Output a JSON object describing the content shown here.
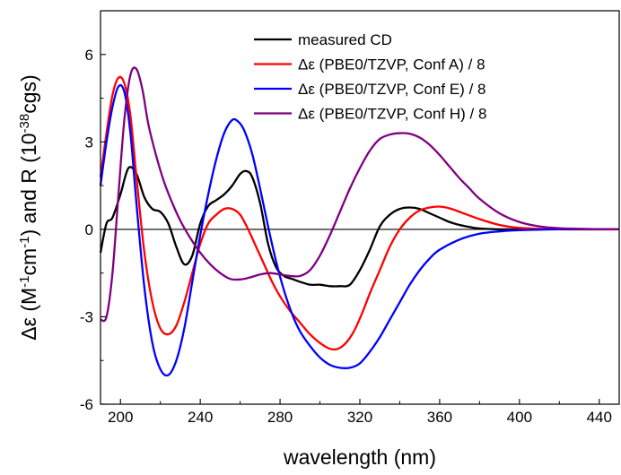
{
  "chart_data": {
    "type": "line",
    "xlabel": "wavelength (nm)",
    "ylabel_parts": [
      "Δε (M",
      "-1",
      "cm",
      "-1",
      ") and R (10",
      "-38",
      "cgs)"
    ],
    "xlim": [
      190,
      450
    ],
    "ylim": [
      -6,
      7.5
    ],
    "xticks": [
      200,
      240,
      280,
      320,
      360,
      400,
      440
    ],
    "yticks": [
      -6,
      -3,
      0,
      3,
      6
    ],
    "legend_position": "top-right",
    "zero_line": true,
    "series": [
      {
        "name": "measured CD",
        "color": "#000000",
        "x": [
          190,
          193,
          196,
          200,
          204,
          208,
          212,
          216,
          220,
          224,
          228,
          232,
          236,
          240,
          244,
          248,
          252,
          256,
          260,
          263,
          266,
          270,
          274,
          278,
          282,
          286,
          290,
          295,
          300,
          305,
          310,
          315,
          320,
          325,
          330,
          335,
          340,
          345,
          350,
          355,
          360,
          365,
          370,
          375,
          380,
          390,
          400,
          420,
          450
        ],
        "y": [
          -0.8,
          0.2,
          0.4,
          1.2,
          2.1,
          1.9,
          1.1,
          0.7,
          0.6,
          0.2,
          -0.6,
          -1.2,
          -0.9,
          0.2,
          0.8,
          1.0,
          1.2,
          1.5,
          1.9,
          2.0,
          1.8,
          0.9,
          -0.5,
          -1.3,
          -1.6,
          -1.7,
          -1.8,
          -1.9,
          -1.9,
          -1.95,
          -1.95,
          -1.9,
          -1.4,
          -0.7,
          0.1,
          0.5,
          0.7,
          0.75,
          0.7,
          0.55,
          0.4,
          0.25,
          0.15,
          0.08,
          0.03,
          0.0,
          0.0,
          0.0,
          0.0
        ]
      },
      {
        "name": "Δε (PBE0/TZVP, Conf A) / 8",
        "color": "#ff0000",
        "x": [
          190,
          193,
          196,
          199,
          202,
          205,
          208,
          212,
          216,
          220,
          224,
          228,
          232,
          236,
          240,
          244,
          248,
          252,
          256,
          260,
          264,
          268,
          272,
          276,
          280,
          285,
          290,
          295,
          300,
          305,
          309,
          313,
          317,
          321,
          325,
          330,
          335,
          340,
          345,
          350,
          355,
          360,
          365,
          370,
          380,
          390,
          400,
          420,
          450
        ],
        "y": [
          1.8,
          3.3,
          4.6,
          5.2,
          5.0,
          3.9,
          1.8,
          -0.8,
          -2.5,
          -3.4,
          -3.6,
          -3.3,
          -2.5,
          -1.5,
          -0.5,
          0.2,
          0.5,
          0.7,
          0.7,
          0.5,
          0.0,
          -0.6,
          -1.2,
          -1.8,
          -2.3,
          -2.8,
          -3.2,
          -3.6,
          -3.9,
          -4.1,
          -4.1,
          -3.9,
          -3.5,
          -2.9,
          -2.2,
          -1.4,
          -0.6,
          0.0,
          0.4,
          0.65,
          0.75,
          0.78,
          0.72,
          0.6,
          0.35,
          0.15,
          0.05,
          0.0,
          0.0
        ]
      },
      {
        "name": "Δε (PBE0/TZVP, Conf E) / 8",
        "color": "#0000ff",
        "x": [
          190,
          193,
          196,
          199,
          202,
          205,
          208,
          212,
          216,
          220,
          224,
          228,
          232,
          236,
          240,
          244,
          248,
          252,
          256,
          259,
          262,
          266,
          270,
          274,
          278,
          282,
          286,
          290,
          295,
          300,
          305,
          310,
          315,
          320,
          325,
          330,
          335,
          340,
          345,
          350,
          355,
          360,
          370,
          380,
          390,
          400,
          420,
          450
        ],
        "y": [
          1.5,
          3.0,
          4.2,
          4.9,
          4.7,
          3.3,
          0.9,
          -2.0,
          -3.9,
          -4.8,
          -5.0,
          -4.5,
          -3.4,
          -1.8,
          -0.2,
          1.2,
          2.4,
          3.3,
          3.75,
          3.7,
          3.4,
          2.6,
          1.4,
          0.1,
          -1.1,
          -2.1,
          -2.9,
          -3.5,
          -4.0,
          -4.4,
          -4.65,
          -4.75,
          -4.75,
          -4.6,
          -4.2,
          -3.7,
          -3.1,
          -2.5,
          -1.9,
          -1.4,
          -1.0,
          -0.7,
          -0.35,
          -0.15,
          -0.07,
          -0.03,
          0.0,
          0.0
        ]
      },
      {
        "name": "Δε (PBE0/TZVP, Conf H) / 8",
        "color": "#800080",
        "x": [
          190,
          193,
          196,
          199,
          202,
          205,
          208,
          211,
          214,
          218,
          222,
          226,
          230,
          235,
          240,
          245,
          250,
          255,
          260,
          265,
          270,
          275,
          280,
          285,
          290,
          295,
          300,
          305,
          310,
          315,
          320,
          325,
          330,
          335,
          340,
          345,
          350,
          355,
          360,
          365,
          370,
          375,
          380,
          390,
          400,
          410,
          420,
          435,
          450
        ],
        "y": [
          -3.1,
          -3.0,
          -1.5,
          1.2,
          3.8,
          5.3,
          5.5,
          4.8,
          3.6,
          2.5,
          1.6,
          0.9,
          0.3,
          -0.3,
          -0.8,
          -1.2,
          -1.5,
          -1.7,
          -1.72,
          -1.65,
          -1.55,
          -1.5,
          -1.55,
          -1.6,
          -1.6,
          -1.4,
          -0.9,
          -0.2,
          0.6,
          1.4,
          2.1,
          2.7,
          3.1,
          3.25,
          3.3,
          3.28,
          3.15,
          2.9,
          2.55,
          2.15,
          1.75,
          1.4,
          1.05,
          0.55,
          0.25,
          0.1,
          0.04,
          0.01,
          0.0
        ]
      }
    ]
  }
}
